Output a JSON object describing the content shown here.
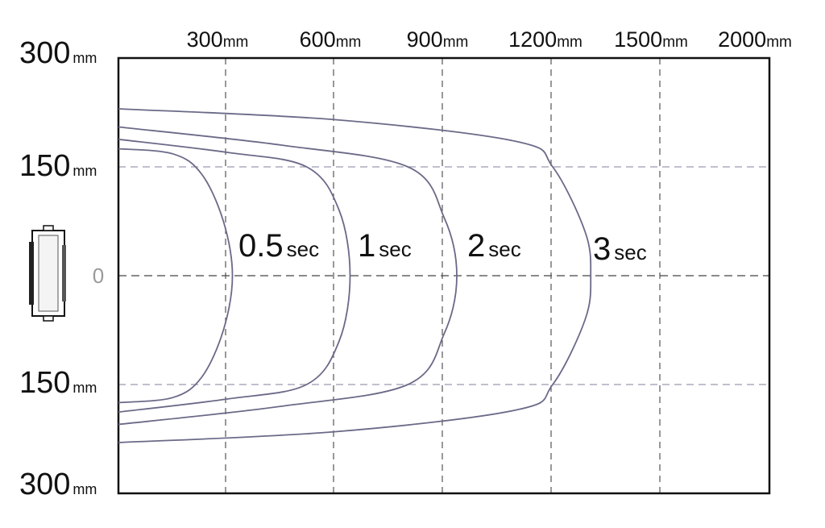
{
  "chart_data": {
    "type": "line",
    "title": "",
    "xlabel": "",
    "ylabel": "",
    "x_ticks": [
      {
        "value": 300,
        "label": "300",
        "unit": "mm"
      },
      {
        "value": 600,
        "label": "600",
        "unit": "mm"
      },
      {
        "value": 900,
        "label": "900",
        "unit": "mm"
      },
      {
        "value": 1200,
        "label": "1200",
        "unit": "mm"
      },
      {
        "value": 1500,
        "label": "1500",
        "unit": "mm"
      },
      {
        "value": 2000,
        "label": "2000",
        "unit": "mm"
      }
    ],
    "y_ticks": [
      {
        "value": 300,
        "label": "300",
        "unit": "mm"
      },
      {
        "value": 150,
        "label": "150",
        "unit": "mm"
      },
      {
        "value": 0,
        "label": "0",
        "unit": ""
      },
      {
        "value": -150,
        "label": "150",
        "unit": "mm"
      },
      {
        "value": -300,
        "label": "300",
        "unit": "mm"
      }
    ],
    "xlim": [
      0,
      1800
    ],
    "ylim": [
      -300,
      300
    ],
    "grid": true,
    "line_color": "#6a6a88",
    "series": [
      {
        "name": "0.5sec",
        "label_main": "0.5",
        "label_unit": "sec",
        "points": [
          [
            0,
            175
          ],
          [
            150,
            168
          ],
          [
            230,
            140
          ],
          [
            290,
            75
          ],
          [
            315,
            0
          ],
          [
            290,
            -75
          ],
          [
            230,
            -140
          ],
          [
            150,
            -168
          ],
          [
            0,
            -175
          ]
        ]
      },
      {
        "name": "1sec",
        "label_main": "1",
        "label_unit": "sec",
        "points": [
          [
            0,
            188
          ],
          [
            300,
            170
          ],
          [
            520,
            150
          ],
          [
            610,
            90
          ],
          [
            640,
            0
          ],
          [
            610,
            -90
          ],
          [
            520,
            -150
          ],
          [
            300,
            -170
          ],
          [
            0,
            -188
          ]
        ]
      },
      {
        "name": "2sec",
        "label_main": "2",
        "label_unit": "sec",
        "points": [
          [
            0,
            205
          ],
          [
            450,
            180
          ],
          [
            800,
            150
          ],
          [
            900,
            80
          ],
          [
            935,
            0
          ],
          [
            900,
            -80
          ],
          [
            800,
            -150
          ],
          [
            450,
            -180
          ],
          [
            0,
            -205
          ]
        ]
      },
      {
        "name": "3sec",
        "label_main": "3",
        "label_unit": "sec",
        "points": [
          [
            0,
            230
          ],
          [
            600,
            215
          ],
          [
            1100,
            185
          ],
          [
            1200,
            150
          ],
          [
            1290,
            60
          ],
          [
            1305,
            0
          ],
          [
            1290,
            -60
          ],
          [
            1200,
            -150
          ],
          [
            1100,
            -185
          ],
          [
            600,
            -215
          ],
          [
            0,
            -230
          ]
        ]
      }
    ]
  },
  "sensor_icon": "sensor-device-icon"
}
